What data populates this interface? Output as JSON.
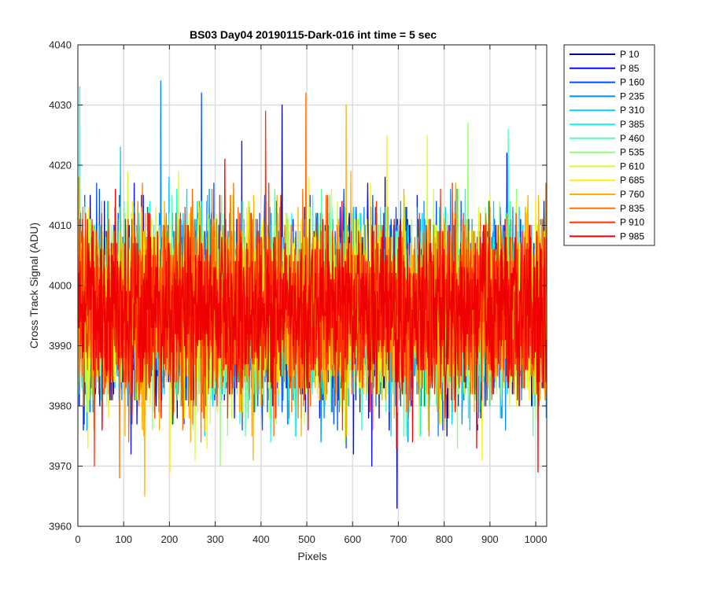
{
  "chart_data": {
    "type": "line",
    "title": "BS03 Day04 20190115-Dark-016 int time = 5 sec",
    "xlabel": "Pixels",
    "ylabel": "Cross Track Signal (ADU)",
    "xlim": [
      0,
      1024
    ],
    "ylim": [
      3960,
      4040
    ],
    "xticks": [
      "0",
      "100",
      "200",
      "300",
      "400",
      "500",
      "600",
      "700",
      "800",
      "900",
      "1000"
    ],
    "yticks": [
      "3960",
      "3970",
      "3980",
      "3990",
      "4000",
      "4010",
      "4020",
      "4030",
      "4040"
    ],
    "grid": true,
    "legend_position": "outside-top-right",
    "series": [
      {
        "name": "P 10",
        "color": "#00008F",
        "mean": 3996,
        "sd": 7.5,
        "min": 3963,
        "max": 4030
      },
      {
        "name": "P 85",
        "color": "#0010FF",
        "mean": 3996,
        "sd": 7.5,
        "min": 3970,
        "max": 4024
      },
      {
        "name": "P 160",
        "color": "#0050FF",
        "mean": 3996,
        "sd": 7.5,
        "min": 3973,
        "max": 4032
      },
      {
        "name": "P 235",
        "color": "#0090FF",
        "mean": 3996,
        "sd": 7.5,
        "min": 3974,
        "max": 4034
      },
      {
        "name": "P 310",
        "color": "#00CFFF",
        "mean": 3996,
        "sd": 7.5,
        "min": 3975,
        "max": 4023
      },
      {
        "name": "P 385",
        "color": "#10FFEF",
        "mean": 3996,
        "sd": 7.5,
        "min": 3974,
        "max": 4033
      },
      {
        "name": "P 460",
        "color": "#50FFAF",
        "mean": 3996,
        "sd": 7.5,
        "min": 3975,
        "max": 4026
      },
      {
        "name": "P 535",
        "color": "#90FF6F",
        "mean": 3996,
        "sd": 7.5,
        "min": 3970,
        "max": 4027
      },
      {
        "name": "P 610",
        "color": "#CFFF30",
        "mean": 3996,
        "sd": 7.5,
        "min": 3971,
        "max": 4025
      },
      {
        "name": "P 685",
        "color": "#FFEF00",
        "mean": 3996,
        "sd": 7.5,
        "min": 3969,
        "max": 4025
      },
      {
        "name": "P 760",
        "color": "#FFAF00",
        "mean": 3996,
        "sd": 7.5,
        "min": 3965,
        "max": 4030
      },
      {
        "name": "P 835",
        "color": "#FF7000",
        "mean": 3996,
        "sd": 7.5,
        "min": 3968,
        "max": 4032
      },
      {
        "name": "P 910",
        "color": "#FF3000",
        "mean": 3996,
        "sd": 7.5,
        "min": 3970,
        "max": 4029
      },
      {
        "name": "P 985",
        "color": "#EF0000",
        "mean": 3996,
        "sd": 7.0,
        "min": 3969,
        "max": 4021
      }
    ],
    "samples_per_series": 1024
  }
}
